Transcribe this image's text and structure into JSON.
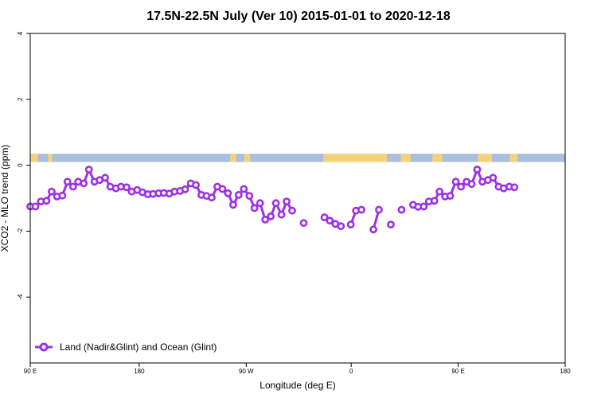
{
  "chart_data": {
    "type": "line",
    "title": "17.5N-22.5N July (Ver 10)   2015-01-01 to 2020-12-18",
    "xlabel": "Longitude (deg E)",
    "ylabel": "XCO2 - MLO trend (ppm)",
    "xlim": [
      -90,
      180
    ],
    "ylim": [
      -6,
      4
    ],
    "xticks": [
      {
        "value": -90,
        "label": "90 E"
      },
      {
        "value": -35,
        "label": "180"
      },
      {
        "value": 19,
        "label": "90 W"
      },
      {
        "value": 72,
        "label": "0"
      },
      {
        "value": 126,
        "label": "90 E"
      },
      {
        "value": 180,
        "label": "180"
      }
    ],
    "yticks": [
      {
        "value": 4,
        "label": "4"
      },
      {
        "value": 2,
        "label": "2"
      },
      {
        "value": 0,
        "label": "0"
      },
      {
        "value": -2,
        "label": "-2"
      },
      {
        "value": -4,
        "label": "-4"
      }
    ],
    "legend": {
      "placement": "bottom-left",
      "label": "Land (Nadir&Glint) and Ocean (Glint)"
    },
    "colors": {
      "series": "#9b30e8",
      "ocean": "#a9bfe0",
      "land": "#f5d27a"
    },
    "land_ocean_band": {
      "y_top": 0.35,
      "y_bottom": 0.1,
      "land_segments": [
        [
          -90,
          -86
        ],
        [
          -81,
          -79
        ],
        [
          11,
          14
        ],
        [
          18,
          21
        ],
        [
          58,
          90
        ],
        [
          97,
          102
        ],
        [
          113,
          118
        ],
        [
          136,
          143
        ],
        [
          152,
          156
        ]
      ]
    },
    "series": [
      {
        "name": "Land (Nadir&Glint) and Ocean (Glint)",
        "segments": [
          [
            [
              -90,
              -1.25
            ],
            [
              -87.4,
              -1.25
            ],
            [
              -84.6,
              -1.1
            ],
            [
              -81.8,
              -1.08
            ],
            [
              -79.2,
              -0.8
            ],
            [
              -76.5,
              -0.95
            ],
            [
              -73.8,
              -0.92
            ],
            [
              -71.2,
              -0.5
            ],
            [
              -68.4,
              -0.65
            ],
            [
              -65.8,
              -0.5
            ],
            [
              -63,
              -0.55
            ],
            [
              -60.4,
              -0.13
            ],
            [
              -57.6,
              -0.5
            ],
            [
              -55,
              -0.45
            ],
            [
              -52.2,
              -0.38
            ],
            [
              -49.6,
              -0.65
            ],
            [
              -46.8,
              -0.7
            ],
            [
              -44.2,
              -0.65
            ],
            [
              -41.4,
              -0.67
            ],
            [
              -38.8,
              -0.8
            ],
            [
              -36,
              -0.75
            ],
            [
              -33.4,
              -0.82
            ],
            [
              -30.6,
              -0.88
            ],
            [
              -28,
              -0.87
            ],
            [
              -25.2,
              -0.85
            ],
            [
              -22.6,
              -0.84
            ],
            [
              -19.8,
              -0.86
            ],
            [
              -17.2,
              -0.8
            ],
            [
              -14.4,
              -0.78
            ],
            [
              -11.8,
              -0.73
            ],
            [
              -9,
              -0.55
            ],
            [
              -6.4,
              -0.6
            ],
            [
              -3.6,
              -0.9
            ],
            [
              -1,
              -0.93
            ],
            [
              1.6,
              -0.98
            ],
            [
              4.4,
              -0.65
            ],
            [
              7,
              -0.72
            ],
            [
              9.8,
              -0.85
            ],
            [
              12.4,
              -1.2
            ],
            [
              15.2,
              -0.9
            ],
            [
              17.8,
              -0.72
            ],
            [
              20.6,
              -0.93
            ],
            [
              23.2,
              -1.3
            ],
            [
              26,
              -1.15
            ],
            [
              28.6,
              -1.65
            ],
            [
              31.4,
              -1.55
            ],
            [
              34,
              -1.15
            ],
            [
              36.8,
              -1.5
            ],
            [
              39.4,
              -1.1
            ],
            [
              42.2,
              -1.38
            ]
          ],
          [
            [
              48,
              -1.75
            ]
          ],
          [
            [
              58.5,
              -1.58
            ],
            [
              61.2,
              -1.68
            ],
            [
              64,
              -1.78
            ],
            [
              66.8,
              -1.85
            ]
          ],
          [
            [
              71.8,
              -1.8
            ],
            [
              74.4,
              -1.38
            ],
            [
              77.2,
              -1.35
            ]
          ],
          [
            [
              83.2,
              -1.95
            ],
            [
              86,
              -1.35
            ]
          ],
          [
            [
              92,
              -1.8
            ]
          ],
          [
            [
              97.4,
              -1.35
            ]
          ],
          [
            [
              103.2,
              -1.2
            ],
            [
              105.8,
              -1.26
            ],
            [
              108.6,
              -1.25
            ],
            [
              111.2,
              -1.1
            ],
            [
              114,
              -1.08
            ],
            [
              116.6,
              -0.8
            ],
            [
              119.4,
              -0.95
            ],
            [
              122,
              -0.93
            ],
            [
              124.8,
              -0.5
            ],
            [
              127.4,
              -0.65
            ],
            [
              130.2,
              -0.5
            ],
            [
              132.8,
              -0.57
            ],
            [
              135.6,
              -0.13
            ],
            [
              138.2,
              -0.5
            ],
            [
              141,
              -0.45
            ],
            [
              143.6,
              -0.38
            ],
            [
              146.4,
              -0.65
            ],
            [
              149,
              -0.7
            ],
            [
              151.8,
              -0.65
            ],
            [
              154.4,
              -0.67
            ]
          ]
        ]
      }
    ]
  }
}
